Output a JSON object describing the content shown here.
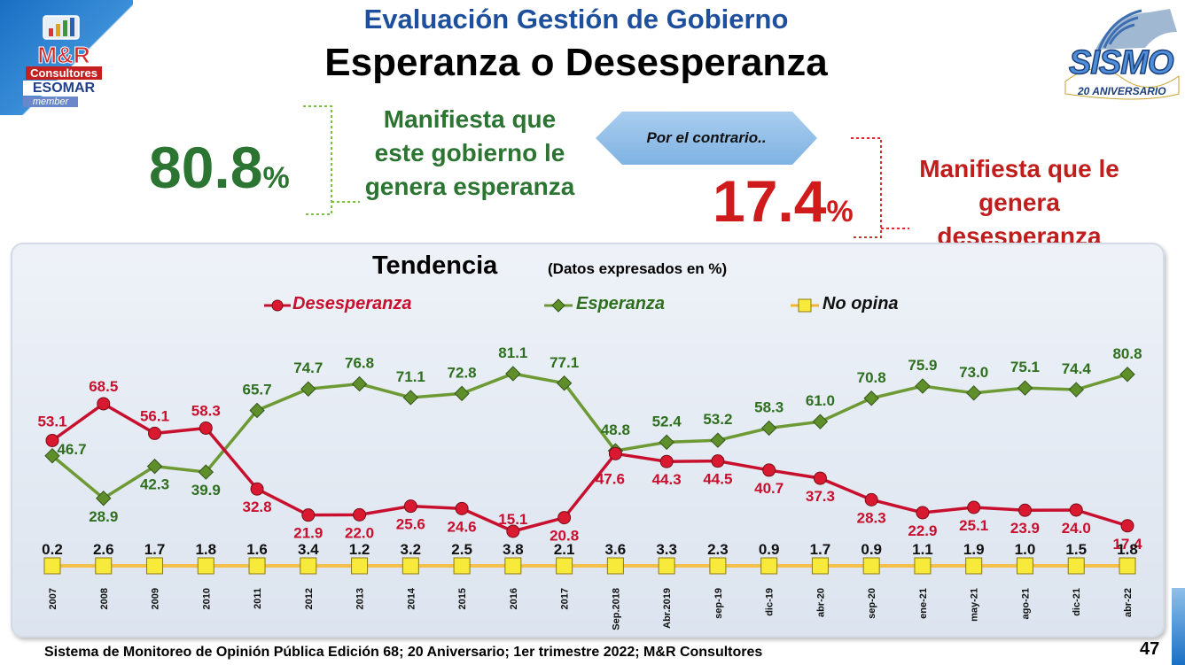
{
  "header": {
    "title": "Evaluación Gestión de Gobierno",
    "subtitle": "Esperanza o Desesperanza"
  },
  "logos": {
    "left": {
      "brand": "M&R",
      "sub": "Consultores",
      "assoc": "ESOMAR",
      "member": "member"
    },
    "right": {
      "word": "SISMO",
      "anniversary": "20 ANIVERSARIO"
    }
  },
  "summary": {
    "hope": {
      "value": "80.8",
      "unit": "%",
      "text": [
        "Manifiesta que",
        "este gobierno le",
        "genera esperanza"
      ],
      "color": "#2b7431"
    },
    "contrast_label": "Por el contrario..",
    "despair": {
      "value": "17.4",
      "unit": "%",
      "text": [
        "Manifiesta que le",
        "genera",
        "desesperanza"
      ],
      "color": "#c01d1d"
    }
  },
  "chart_data": {
    "type": "line",
    "title": "Tendencia",
    "subtitle": "(Datos expresados en %)",
    "categories": [
      "2007",
      "2008",
      "2009",
      "2010",
      "2011",
      "2012",
      "2013",
      "2014",
      "2015",
      "2016",
      "2017",
      "Sep.2018",
      "Abr.2019",
      "sep-19",
      "dic-19",
      "abr-20",
      "sep-20",
      "ene-21",
      "may-21",
      "ago-21",
      "dic-21",
      "abr-22"
    ],
    "series": [
      {
        "name": "Desesperanza",
        "color": "#c8102e",
        "marker": "circle",
        "values": [
          53.1,
          68.5,
          56.1,
          58.3,
          32.8,
          21.9,
          22.0,
          25.6,
          24.6,
          15.1,
          20.8,
          47.6,
          44.3,
          44.5,
          40.7,
          37.3,
          28.3,
          22.9,
          25.1,
          23.9,
          24.0,
          17.4
        ]
      },
      {
        "name": "Esperanza",
        "color": "#5e8f2a",
        "marker": "diamond",
        "values": [
          46.7,
          28.9,
          42.3,
          39.9,
          65.7,
          74.7,
          76.8,
          71.1,
          72.8,
          81.1,
          77.1,
          48.8,
          52.4,
          53.2,
          58.3,
          61.0,
          70.8,
          75.9,
          73.0,
          75.1,
          74.4,
          80.8
        ]
      },
      {
        "name": "No opina",
        "color": "#f2b632",
        "marker": "square",
        "values": [
          0.2,
          2.6,
          1.7,
          1.8,
          1.6,
          3.4,
          1.2,
          3.2,
          2.5,
          3.8,
          2.1,
          3.6,
          3.3,
          2.3,
          0.9,
          1.7,
          0.9,
          1.1,
          1.9,
          1.0,
          1.5,
          1.8
        ]
      }
    ],
    "legend": "top",
    "grid": false
  },
  "footer": {
    "source": "Sistema de Monitoreo de Opinión Pública  Edición 68; 20 Aniversario;  1er trimestre 2022; M&R Consultores",
    "page": "47"
  }
}
